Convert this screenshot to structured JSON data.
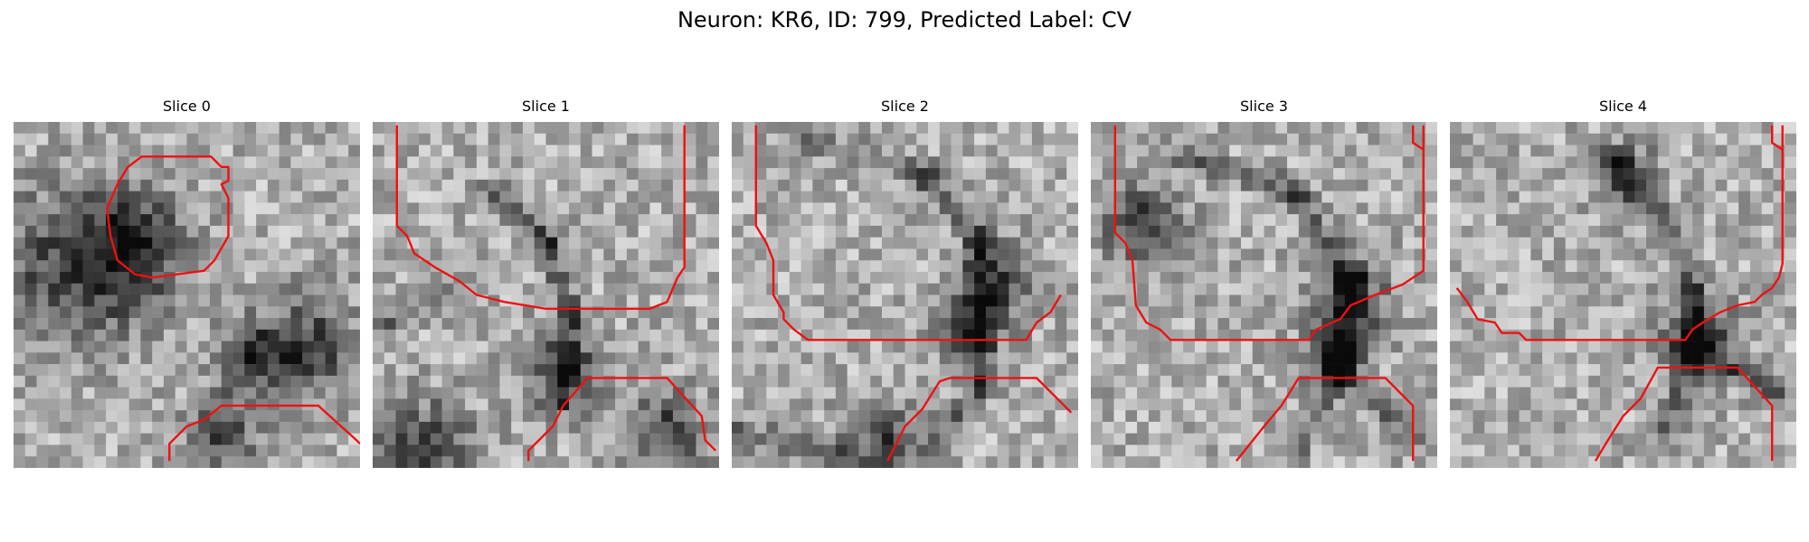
{
  "figure": {
    "suptitle": "Neuron: KR6, ID: 799, Predicted Label: CV"
  },
  "panels": [
    {
      "title": "Slice 0",
      "seed": 11,
      "dark_blobs": [
        [
          0.18,
          0.43,
          0.16
        ],
        [
          0.35,
          0.35,
          0.1
        ],
        [
          0.85,
          0.65,
          0.1
        ],
        [
          0.68,
          0.68,
          0.07
        ],
        [
          0.6,
          0.9,
          0.07
        ]
      ],
      "dark_lines": [],
      "contours": [
        [
          [
            0.37,
            0.1
          ],
          [
            0.57,
            0.1
          ],
          [
            0.6,
            0.13
          ],
          [
            0.62,
            0.13
          ],
          [
            0.62,
            0.17
          ],
          [
            0.6,
            0.18
          ],
          [
            0.62,
            0.22
          ],
          [
            0.62,
            0.33
          ],
          [
            0.58,
            0.4
          ],
          [
            0.55,
            0.43
          ],
          [
            0.4,
            0.45
          ],
          [
            0.35,
            0.44
          ],
          [
            0.3,
            0.4
          ],
          [
            0.28,
            0.33
          ],
          [
            0.27,
            0.25
          ],
          [
            0.3,
            0.18
          ],
          [
            0.33,
            0.13
          ]
        ],
        [
          [
            0.45,
            0.98
          ],
          [
            0.45,
            0.93
          ],
          [
            0.5,
            0.88
          ],
          [
            0.55,
            0.86
          ],
          [
            0.6,
            0.82
          ],
          [
            0.88,
            0.82
          ],
          [
            0.99,
            0.92
          ],
          [
            1.0,
            0.93
          ]
        ]
      ],
      "closed": [
        true,
        false
      ]
    },
    {
      "title": "Slice 1",
      "seed": 23,
      "dark_blobs": [
        [
          0.55,
          0.72,
          0.08
        ],
        [
          0.15,
          0.95,
          0.1
        ],
        [
          0.85,
          0.9,
          0.08
        ]
      ],
      "dark_lines": [
        [
          [
            0.35,
            0.2
          ],
          [
            0.5,
            0.35
          ],
          [
            0.57,
            0.55
          ],
          [
            0.55,
            0.8
          ]
        ],
        [
          [
            0.0,
            0.6
          ],
          [
            0.2,
            0.5
          ]
        ]
      ],
      "contours": [
        [
          [
            0.07,
            0.01
          ],
          [
            0.07,
            0.3
          ],
          [
            0.1,
            0.33
          ],
          [
            0.12,
            0.38
          ],
          [
            0.18,
            0.42
          ],
          [
            0.25,
            0.46
          ],
          [
            0.3,
            0.5
          ],
          [
            0.38,
            0.52
          ],
          [
            0.5,
            0.54
          ],
          [
            0.8,
            0.54
          ],
          [
            0.85,
            0.52
          ],
          [
            0.88,
            0.45
          ],
          [
            0.9,
            0.42
          ],
          [
            0.9,
            0.01
          ]
        ],
        [
          [
            0.45,
            0.98
          ],
          [
            0.45,
            0.95
          ],
          [
            0.52,
            0.88
          ],
          [
            0.55,
            0.82
          ],
          [
            0.62,
            0.74
          ],
          [
            0.85,
            0.74
          ],
          [
            0.95,
            0.85
          ],
          [
            0.96,
            0.92
          ],
          [
            0.99,
            0.95
          ]
        ]
      ],
      "closed": [
        false,
        false
      ]
    },
    {
      "title": "Slice 2",
      "seed": 37,
      "dark_blobs": [
        [
          0.75,
          0.47,
          0.08
        ],
        [
          0.68,
          0.63,
          0.06
        ],
        [
          0.45,
          0.94,
          0.08
        ]
      ],
      "dark_lines": [
        [
          [
            0.2,
            0.05
          ],
          [
            0.55,
            0.15
          ],
          [
            0.72,
            0.35
          ],
          [
            0.72,
            0.75
          ],
          [
            0.6,
            0.95
          ]
        ],
        [
          [
            0.0,
            0.9
          ],
          [
            0.3,
            0.95
          ]
        ]
      ],
      "contours": [
        [
          [
            0.07,
            0.01
          ],
          [
            0.07,
            0.3
          ],
          [
            0.1,
            0.35
          ],
          [
            0.12,
            0.4
          ],
          [
            0.12,
            0.5
          ],
          [
            0.15,
            0.55
          ],
          [
            0.15,
            0.57
          ],
          [
            0.18,
            0.6
          ],
          [
            0.22,
            0.63
          ],
          [
            0.85,
            0.63
          ],
          [
            0.88,
            0.58
          ],
          [
            0.92,
            0.55
          ],
          [
            0.95,
            0.5
          ]
        ],
        [
          [
            0.45,
            0.98
          ],
          [
            0.5,
            0.88
          ],
          [
            0.55,
            0.83
          ],
          [
            0.6,
            0.75
          ],
          [
            0.63,
            0.74
          ],
          [
            0.88,
            0.74
          ],
          [
            0.98,
            0.84
          ]
        ]
      ],
      "closed": [
        false,
        false
      ]
    },
    {
      "title": "Slice 3",
      "seed": 53,
      "dark_blobs": [
        [
          0.75,
          0.52,
          0.08
        ],
        [
          0.7,
          0.68,
          0.06
        ],
        [
          0.15,
          0.3,
          0.08
        ]
      ],
      "dark_lines": [
        [
          [
            0.25,
            0.1
          ],
          [
            0.6,
            0.2
          ],
          [
            0.75,
            0.45
          ],
          [
            0.72,
            0.7
          ],
          [
            0.6,
            0.95
          ]
        ],
        [
          [
            0.7,
            0.7
          ],
          [
            0.95,
            0.92
          ]
        ]
      ],
      "contours": [
        [
          [
            0.07,
            0.01
          ],
          [
            0.07,
            0.32
          ],
          [
            0.1,
            0.35
          ],
          [
            0.12,
            0.4
          ],
          [
            0.13,
            0.53
          ],
          [
            0.16,
            0.58
          ],
          [
            0.2,
            0.6
          ],
          [
            0.23,
            0.63
          ],
          [
            0.63,
            0.63
          ],
          [
            0.65,
            0.6
          ],
          [
            0.72,
            0.57
          ],
          [
            0.75,
            0.53
          ],
          [
            0.82,
            0.5
          ],
          [
            0.9,
            0.47
          ],
          [
            0.96,
            0.43
          ],
          [
            0.96,
            0.01
          ]
        ],
        [
          [
            0.42,
            0.98
          ],
          [
            0.5,
            0.88
          ],
          [
            0.55,
            0.82
          ],
          [
            0.6,
            0.74
          ],
          [
            0.63,
            0.74
          ],
          [
            0.85,
            0.74
          ],
          [
            0.93,
            0.82
          ],
          [
            0.93,
            0.98
          ]
        ],
        [
          [
            0.93,
            0.01
          ],
          [
            0.93,
            0.06
          ],
          [
            0.96,
            0.08
          ]
        ]
      ],
      "closed": [
        false,
        false,
        false
      ]
    },
    {
      "title": "Slice 4",
      "seed": 71,
      "dark_blobs": [
        [
          0.72,
          0.62,
          0.08
        ],
        [
          0.5,
          0.15,
          0.06
        ]
      ],
      "dark_lines": [
        [
          [
            0.45,
            0.1
          ],
          [
            0.6,
            0.25
          ],
          [
            0.7,
            0.5
          ],
          [
            0.7,
            0.7
          ],
          [
            0.6,
            0.95
          ]
        ],
        [
          [
            0.7,
            0.65
          ],
          [
            0.95,
            0.8
          ]
        ]
      ],
      "contours": [
        [
          [
            0.02,
            0.48
          ],
          [
            0.05,
            0.52
          ],
          [
            0.08,
            0.57
          ],
          [
            0.13,
            0.58
          ],
          [
            0.15,
            0.61
          ],
          [
            0.2,
            0.61
          ],
          [
            0.22,
            0.63
          ],
          [
            0.68,
            0.63
          ],
          [
            0.7,
            0.6
          ],
          [
            0.73,
            0.58
          ],
          [
            0.78,
            0.55
          ],
          [
            0.83,
            0.53
          ],
          [
            0.88,
            0.52
          ],
          [
            0.9,
            0.5
          ],
          [
            0.93,
            0.48
          ],
          [
            0.95,
            0.45
          ],
          [
            0.96,
            0.41
          ],
          [
            0.96,
            0.01
          ]
        ],
        [
          [
            0.42,
            0.98
          ],
          [
            0.45,
            0.93
          ],
          [
            0.5,
            0.85
          ],
          [
            0.55,
            0.8
          ],
          [
            0.6,
            0.71
          ],
          [
            0.83,
            0.71
          ],
          [
            0.93,
            0.82
          ],
          [
            0.93,
            0.98
          ]
        ],
        [
          [
            0.93,
            0.01
          ],
          [
            0.93,
            0.06
          ],
          [
            0.96,
            0.08
          ]
        ]
      ],
      "closed": [
        false,
        false,
        false
      ]
    }
  ],
  "style": {
    "contour_color": "#ee1111"
  }
}
